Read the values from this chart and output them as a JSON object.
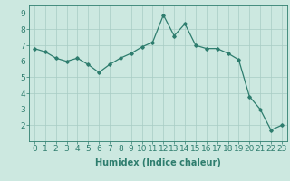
{
  "xlabel": "Humidex (Indice chaleur)",
  "x": [
    0,
    1,
    2,
    3,
    4,
    5,
    6,
    7,
    8,
    9,
    10,
    11,
    12,
    13,
    14,
    15,
    16,
    17,
    18,
    19,
    20,
    21,
    22,
    23
  ],
  "y": [
    6.8,
    6.6,
    6.2,
    6.0,
    6.2,
    5.8,
    5.3,
    5.8,
    6.2,
    6.5,
    6.9,
    7.2,
    8.9,
    7.6,
    8.35,
    7.0,
    6.8,
    6.8,
    6.5,
    6.1,
    3.8,
    3.0,
    1.7,
    2.0
  ],
  "line_color": "#2e7d6e",
  "marker": "D",
  "marker_size": 1.8,
  "line_width": 0.9,
  "background_color": "#cce8e0",
  "grid_color": "#a8ccc4",
  "tick_color": "#2e7d6e",
  "label_color": "#2e7d6e",
  "ylim": [
    1.0,
    9.5
  ],
  "xlim": [
    -0.5,
    23.5
  ],
  "yticks": [
    2,
    3,
    4,
    5,
    6,
    7,
    8,
    9
  ],
  "xticks": [
    0,
    1,
    2,
    3,
    4,
    5,
    6,
    7,
    8,
    9,
    10,
    11,
    12,
    13,
    14,
    15,
    16,
    17,
    18,
    19,
    20,
    21,
    22,
    23
  ],
  "xlabel_fontsize": 7,
  "tick_fontsize": 6.5
}
